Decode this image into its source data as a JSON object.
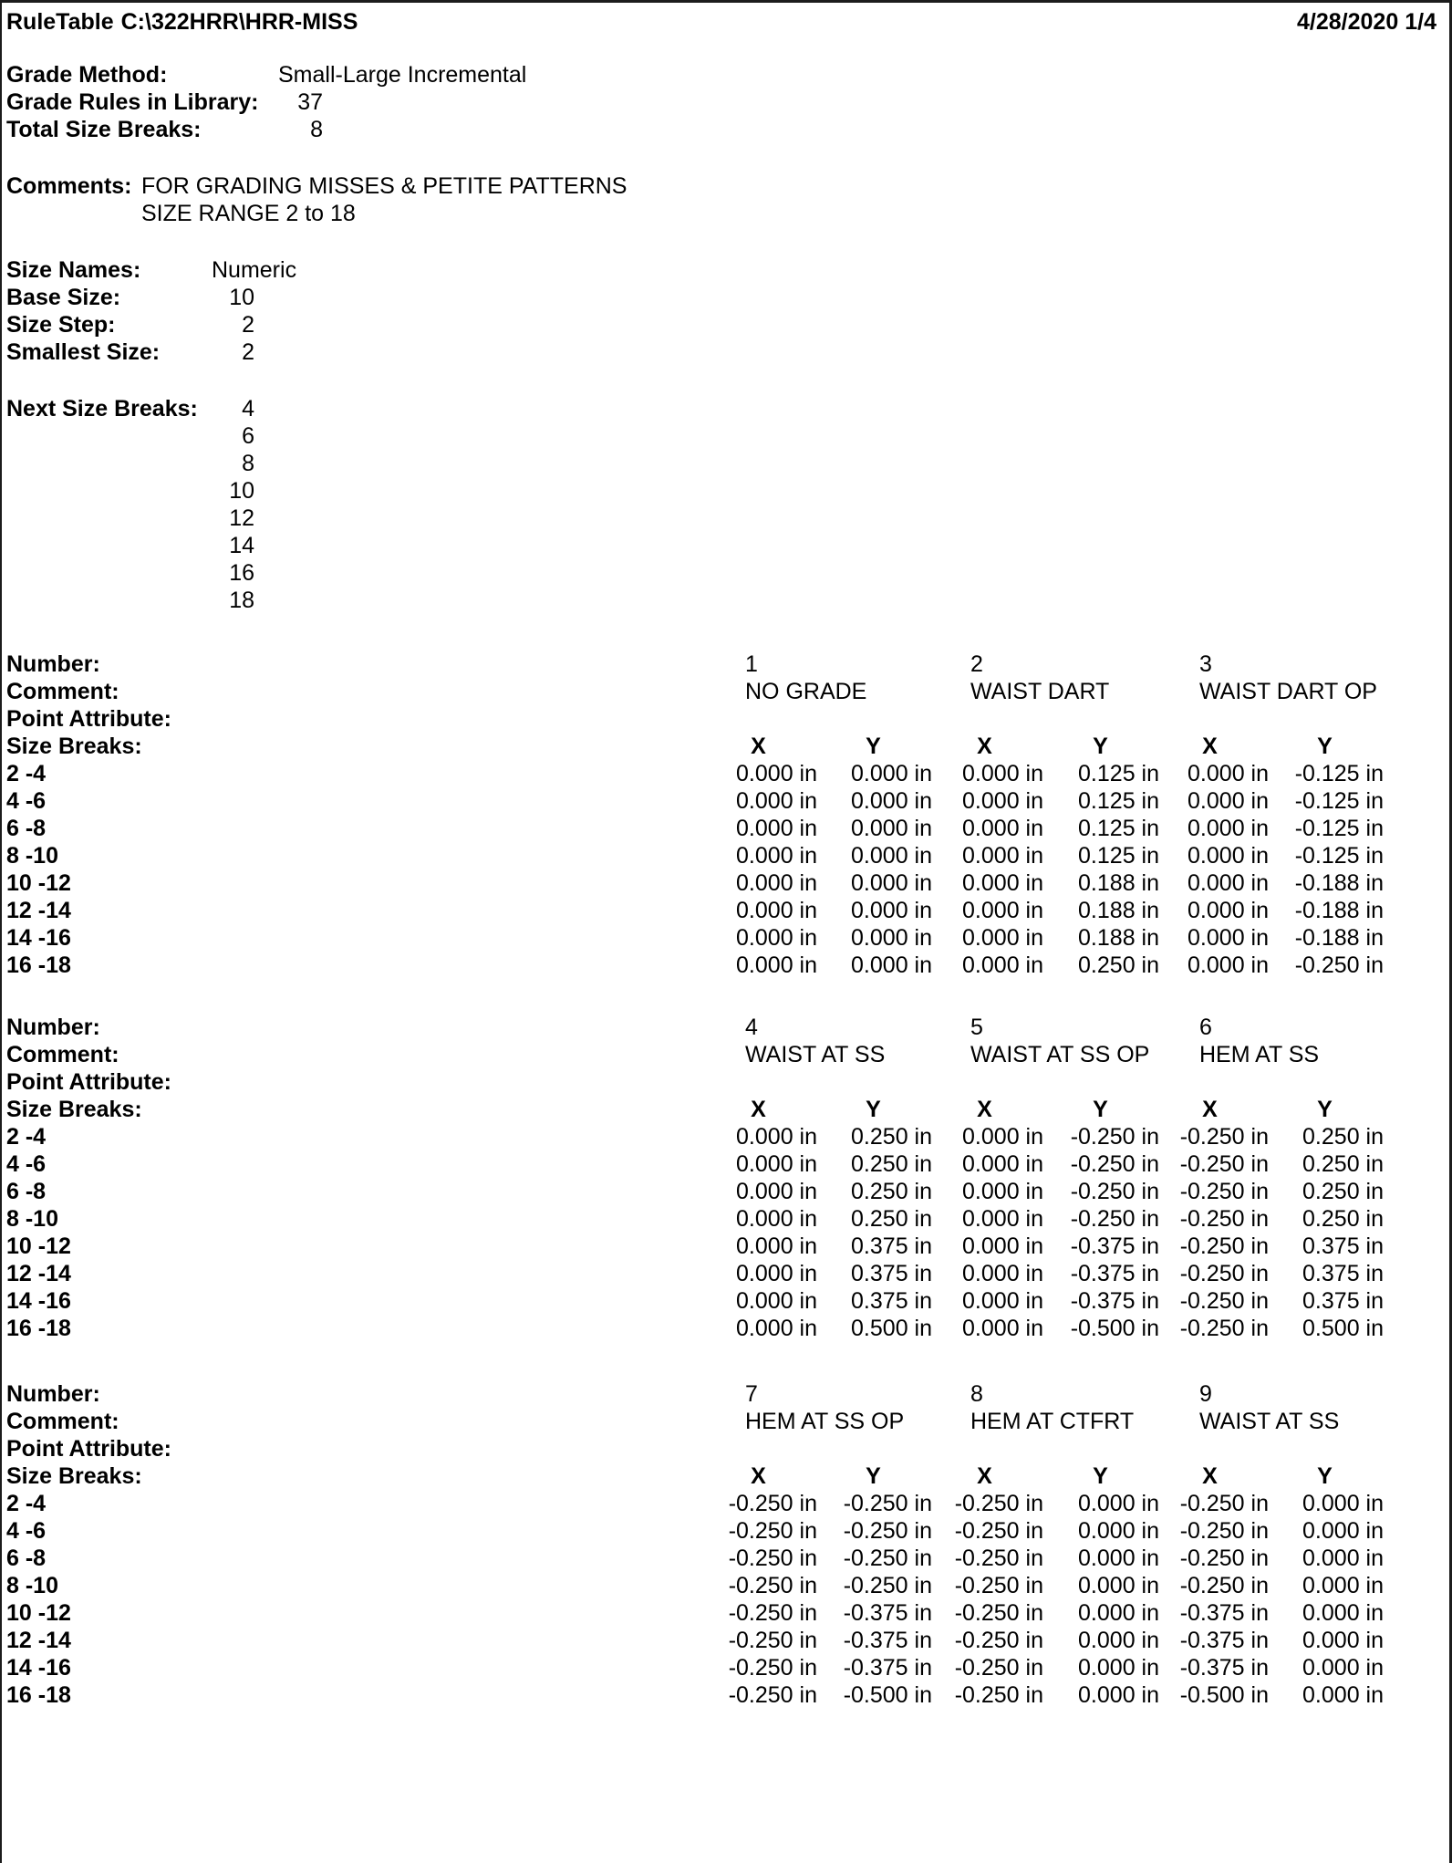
{
  "header": {
    "app_label": "RuleTable",
    "file_path": "C:\\322HRR\\HRR-MISS",
    "date": "4/28/2020",
    "page_number": "1/4"
  },
  "info": {
    "grade_method_label": "Grade Method:",
    "grade_method": "Small-Large Incremental",
    "grade_rules_label": "Grade Rules in Library:",
    "grade_rules_in_library": "37",
    "total_size_breaks_label": "Total Size Breaks:",
    "total_size_breaks": "8",
    "comments_label": "Comments:",
    "comments": [
      "FOR GRADING MISSES & PETITE PATTERNS",
      "SIZE RANGE 2 to 18"
    ],
    "size_names_label": "Size Names:",
    "size_names": "Numeric",
    "base_size_label": "Base Size:",
    "base_size": "10",
    "size_step_label": "Size Step:",
    "size_step": "2",
    "smallest_size_label": "Smallest Size:",
    "smallest_size": "2",
    "next_size_breaks_label": "Next Size Breaks:",
    "next_size_breaks": [
      "4",
      "6",
      "8",
      "10",
      "12",
      "14",
      "16",
      "18"
    ]
  },
  "table_labels": {
    "number": "Number:",
    "comment": "Comment:",
    "point_attribute": "Point Attribute:",
    "size_breaks": "Size Breaks:",
    "x_header": "X",
    "y_header": "Y"
  },
  "size_break_rows": [
    "2 -4",
    "4 -6",
    "6 -8",
    "8 -10",
    "10 -12",
    "12 -14",
    "14 -16",
    "16 -18"
  ],
  "rule_blocks": [
    [
      {
        "number": "1",
        "comment": "NO GRADE",
        "x": [
          "0.000 in",
          "0.000 in",
          "0.000 in",
          "0.000 in",
          "0.000 in",
          "0.000 in",
          "0.000 in",
          "0.000 in"
        ],
        "y": [
          "0.000 in",
          "0.000 in",
          "0.000 in",
          "0.000 in",
          "0.000 in",
          "0.000 in",
          "0.000 in",
          "0.000 in"
        ]
      },
      {
        "number": "2",
        "comment": "WAIST DART",
        "x": [
          "0.000 in",
          "0.000 in",
          "0.000 in",
          "0.000 in",
          "0.000 in",
          "0.000 in",
          "0.000 in",
          "0.000 in"
        ],
        "y": [
          "0.125 in",
          "0.125 in",
          "0.125 in",
          "0.125 in",
          "0.188 in",
          "0.188 in",
          "0.188 in",
          "0.250 in"
        ]
      },
      {
        "number": "3",
        "comment": "WAIST DART OP",
        "x": [
          "0.000 in",
          "0.000 in",
          "0.000 in",
          "0.000 in",
          "0.000 in",
          "0.000 in",
          "0.000 in",
          "0.000 in"
        ],
        "y": [
          "-0.125 in",
          "-0.125 in",
          "-0.125 in",
          "-0.125 in",
          "-0.188 in",
          "-0.188 in",
          "-0.188 in",
          "-0.250 in"
        ]
      }
    ],
    [
      {
        "number": "4",
        "comment": "WAIST AT SS",
        "x": [
          "0.000 in",
          "0.000 in",
          "0.000 in",
          "0.000 in",
          "0.000 in",
          "0.000 in",
          "0.000 in",
          "0.000 in"
        ],
        "y": [
          "0.250 in",
          "0.250 in",
          "0.250 in",
          "0.250 in",
          "0.375 in",
          "0.375 in",
          "0.375 in",
          "0.500 in"
        ]
      },
      {
        "number": "5",
        "comment": "WAIST AT SS OP",
        "x": [
          "0.000 in",
          "0.000 in",
          "0.000 in",
          "0.000 in",
          "0.000 in",
          "0.000 in",
          "0.000 in",
          "0.000 in"
        ],
        "y": [
          "-0.250 in",
          "-0.250 in",
          "-0.250 in",
          "-0.250 in",
          "-0.375 in",
          "-0.375 in",
          "-0.375 in",
          "-0.500 in"
        ]
      },
      {
        "number": "6",
        "comment": "HEM AT SS",
        "x": [
          "-0.250 in",
          "-0.250 in",
          "-0.250 in",
          "-0.250 in",
          "-0.250 in",
          "-0.250 in",
          "-0.250 in",
          "-0.250 in"
        ],
        "y": [
          "0.250 in",
          "0.250 in",
          "0.250 in",
          "0.250 in",
          "0.375 in",
          "0.375 in",
          "0.375 in",
          "0.500 in"
        ]
      }
    ],
    [
      {
        "number": "7",
        "comment": "HEM AT SS OP",
        "x": [
          "-0.250 in",
          "-0.250 in",
          "-0.250 in",
          "-0.250 in",
          "-0.250 in",
          "-0.250 in",
          "-0.250 in",
          "-0.250 in"
        ],
        "y": [
          "-0.250 in",
          "-0.250 in",
          "-0.250 in",
          "-0.250 in",
          "-0.375 in",
          "-0.375 in",
          "-0.375 in",
          "-0.500 in"
        ]
      },
      {
        "number": "8",
        "comment": "HEM AT CTFRT",
        "x": [
          "-0.250 in",
          "-0.250 in",
          "-0.250 in",
          "-0.250 in",
          "-0.250 in",
          "-0.250 in",
          "-0.250 in",
          "-0.250 in"
        ],
        "y": [
          "0.000 in",
          "0.000 in",
          "0.000 in",
          "0.000 in",
          "0.000 in",
          "0.000 in",
          "0.000 in",
          "0.000 in"
        ]
      },
      {
        "number": "9",
        "comment": "WAIST AT SS",
        "x": [
          "-0.250 in",
          "-0.250 in",
          "-0.250 in",
          "-0.250 in",
          "-0.375 in",
          "-0.375 in",
          "-0.375 in",
          "-0.500 in"
        ],
        "y": [
          "0.000 in",
          "0.000 in",
          "0.000 in",
          "0.000 in",
          "0.000 in",
          "0.000 in",
          "0.000 in",
          "0.000 in"
        ]
      }
    ]
  ]
}
